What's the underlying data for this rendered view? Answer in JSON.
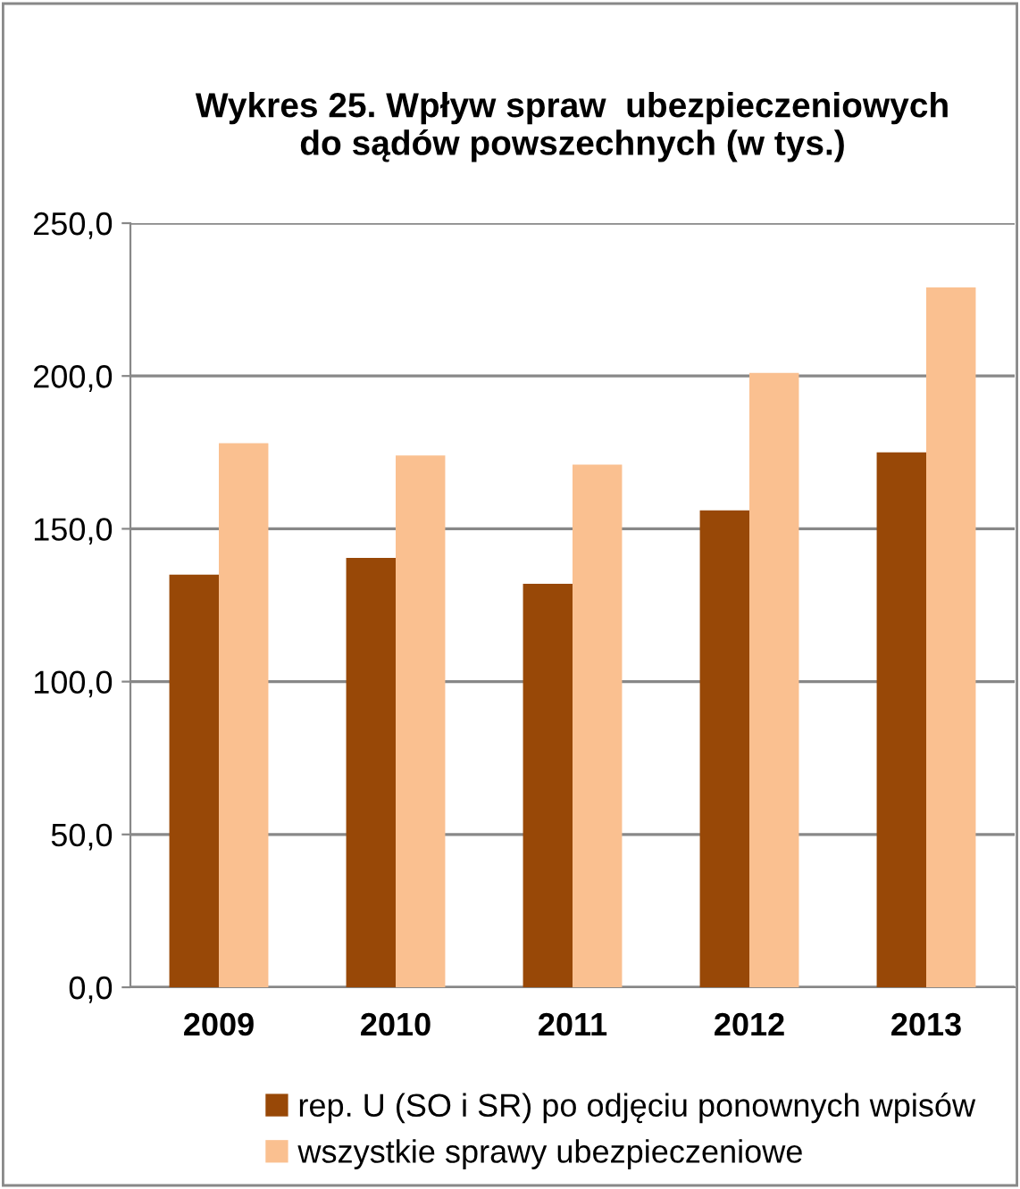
{
  "chart_data": {
    "type": "bar",
    "title": "Wykres 25. Wpływ spraw  ubezpieczeniowych\ndo sądów powszechnych (w tys.)",
    "categories": [
      "2009",
      "2010",
      "2011",
      "2012",
      "2013"
    ],
    "series": [
      {
        "name": "rep. U (SO i SR) po odjęciu ponownych wpisów",
        "color": "#984807",
        "values": [
          135,
          140.5,
          132,
          156,
          175
        ]
      },
      {
        "name": "wszystkie sprawy ubezpieczeniowe",
        "color": "#fac090",
        "values": [
          178,
          174,
          171,
          201,
          229
        ]
      }
    ],
    "ylim": [
      0,
      250
    ],
    "yticks": [
      {
        "value": 0,
        "label": "0,0"
      },
      {
        "value": 50,
        "label": "50,0"
      },
      {
        "value": 100,
        "label": "100,0"
      },
      {
        "value": 150,
        "label": "150,0"
      },
      {
        "value": 200,
        "label": "200,0"
      },
      {
        "value": 250,
        "label": "250,0"
      }
    ],
    "grid": "y",
    "legend": "bottom"
  }
}
